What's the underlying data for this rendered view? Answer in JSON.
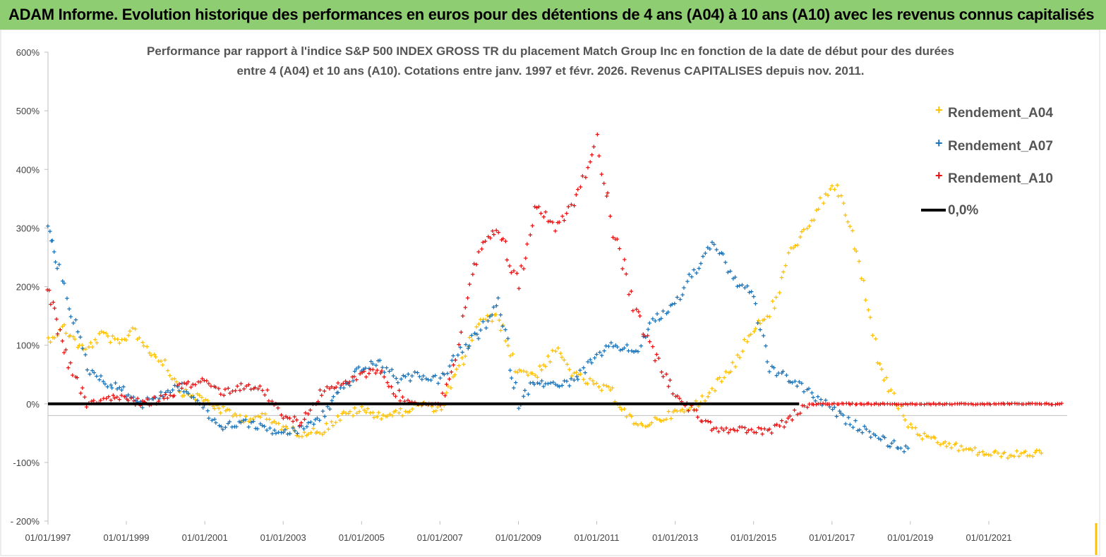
{
  "header": {
    "title": "ADAM Informe. Evolution historique des performances en euros pour des détentions de 4 ans (A04) à 10 ans (A10) avec les revenus connus capitalisés"
  },
  "chart_data": {
    "type": "scatter",
    "title_lines": [
      "Performance par rapport à l'indice S&P 500 INDEX GROSS TR  du placement Match Group Inc en fonction de la date de début pour des durées",
      "entre 4 (A04) et 10 ans (A10). Cotations entre janv. 1997 et févr. 2026. Revenus CAPITALISES depuis nov. 2011."
    ],
    "xlabel": "",
    "ylabel": "",
    "x_range": [
      "1997-01-01",
      "2023-01-01"
    ],
    "ylim": [
      -200,
      600
    ],
    "y_ticks": [
      -200,
      -100,
      0,
      100,
      200,
      300,
      400,
      500,
      600
    ],
    "y_tick_labels": [
      "- 200%",
      "-100%",
      "0%",
      "100%",
      "200%",
      "300%",
      "400%",
      "500%",
      "600%"
    ],
    "x_ticks": [
      "1997-01-01",
      "1999-01-01",
      "2001-01-01",
      "2003-01-01",
      "2005-01-01",
      "2007-01-01",
      "2009-01-01",
      "2011-01-01",
      "2013-01-01",
      "2015-01-01",
      "2017-01-01",
      "2019-01-01",
      "2021-01-01"
    ],
    "x_tick_labels": [
      "01/01/1997",
      "01/01/1999",
      "01/01/2001",
      "01/01/2003",
      "01/01/2005",
      "01/01/2007",
      "01/01/2009",
      "01/01/2011",
      "01/01/2013",
      "01/01/2015",
      "01/01/2017",
      "01/01/2019",
      "01/01/2021"
    ],
    "grid": false,
    "legend_position": "top-right",
    "series": [
      {
        "name": "Rendement_A04",
        "color": "#ffc000",
        "points": [
          [
            "1997-01-01",
            110
          ],
          [
            "1997-06-01",
            130
          ],
          [
            "1997-12-01",
            90
          ],
          [
            "1998-06-01",
            120
          ],
          [
            "1998-11-01",
            100
          ],
          [
            "1999-03-01",
            130
          ],
          [
            "1999-08-01",
            90
          ],
          [
            "2000-01-01",
            70
          ],
          [
            "2000-06-01",
            20
          ],
          [
            "2000-12-01",
            10
          ],
          [
            "2001-06-01",
            -10
          ],
          [
            "2002-01-01",
            -25
          ],
          [
            "2002-06-01",
            -20
          ],
          [
            "2003-01-01",
            -40
          ],
          [
            "2003-06-01",
            -50
          ],
          [
            "2004-01-01",
            -45
          ],
          [
            "2004-07-01",
            -20
          ],
          [
            "2005-01-01",
            -10
          ],
          [
            "2005-07-01",
            -20
          ],
          [
            "2006-01-01",
            -15
          ],
          [
            "2006-07-01",
            0
          ],
          [
            "2007-01-01",
            -10
          ],
          [
            "2007-07-01",
            60
          ],
          [
            "2008-01-01",
            140
          ],
          [
            "2008-07-01",
            150
          ],
          [
            "2008-12-01",
            60
          ],
          [
            "2009-06-01",
            50
          ],
          [
            "2010-01-01",
            90
          ],
          [
            "2010-06-01",
            50
          ],
          [
            "2011-01-01",
            30
          ],
          [
            "2011-06-01",
            20
          ],
          [
            "2012-01-01",
            -40
          ],
          [
            "2012-06-01",
            -30
          ],
          [
            "2013-01-01",
            -15
          ],
          [
            "2013-06-01",
            -10
          ],
          [
            "2014-01-01",
            30
          ],
          [
            "2014-06-01",
            60
          ],
          [
            "2015-01-01",
            130
          ],
          [
            "2015-06-01",
            150
          ],
          [
            "2016-01-01",
            270
          ],
          [
            "2016-06-01",
            300
          ],
          [
            "2017-01-01",
            380
          ],
          [
            "2017-06-01",
            320
          ],
          [
            "2017-10-01",
            220
          ],
          [
            "2018-03-01",
            80
          ],
          [
            "2018-08-01",
            10
          ],
          [
            "2019-01-01",
            -40
          ],
          [
            "2019-06-01",
            -60
          ],
          [
            "2020-01-01",
            -70
          ],
          [
            "2020-06-01",
            -78
          ],
          [
            "2021-01-01",
            -85
          ],
          [
            "2021-06-01",
            -87
          ],
          [
            "2022-01-01",
            -85
          ],
          [
            "2022-06-01",
            -83
          ]
        ]
      },
      {
        "name": "Rendement_A07",
        "color": "#1a73b8",
        "points": [
          [
            "1997-01-01",
            300
          ],
          [
            "1997-04-01",
            240
          ],
          [
            "1997-08-01",
            160
          ],
          [
            "1998-01-01",
            60
          ],
          [
            "1998-06-01",
            40
          ],
          [
            "1999-01-01",
            20
          ],
          [
            "1999-06-01",
            0
          ],
          [
            "2000-01-01",
            20
          ],
          [
            "2000-06-01",
            30
          ],
          [
            "2001-01-01",
            -10
          ],
          [
            "2001-06-01",
            -40
          ],
          [
            "2002-01-01",
            -30
          ],
          [
            "2002-06-01",
            -40
          ],
          [
            "2003-01-01",
            -50
          ],
          [
            "2003-06-01",
            -45
          ],
          [
            "2004-01-01",
            -20
          ],
          [
            "2004-06-01",
            20
          ],
          [
            "2005-01-01",
            60
          ],
          [
            "2005-06-01",
            70
          ],
          [
            "2006-01-01",
            40
          ],
          [
            "2006-06-01",
            50
          ],
          [
            "2007-01-01",
            40
          ],
          [
            "2007-06-01",
            80
          ],
          [
            "2008-01-01",
            120
          ],
          [
            "2008-07-01",
            170
          ],
          [
            "2009-01-01",
            0
          ],
          [
            "2009-06-01",
            40
          ],
          [
            "2010-01-01",
            30
          ],
          [
            "2010-06-01",
            40
          ],
          [
            "2011-01-01",
            80
          ],
          [
            "2011-06-01",
            100
          ],
          [
            "2012-01-01",
            90
          ],
          [
            "2012-06-01",
            140
          ],
          [
            "2013-01-01",
            170
          ],
          [
            "2013-06-01",
            220
          ],
          [
            "2014-01-01",
            280
          ],
          [
            "2014-06-01",
            220
          ],
          [
            "2015-01-01",
            180
          ],
          [
            "2015-06-01",
            60
          ],
          [
            "2016-01-01",
            40
          ],
          [
            "2016-06-01",
            20
          ],
          [
            "2017-01-01",
            -10
          ],
          [
            "2017-06-01",
            -30
          ],
          [
            "2018-01-01",
            -50
          ],
          [
            "2018-06-01",
            -65
          ],
          [
            "2019-01-01",
            -80
          ]
        ]
      },
      {
        "name": "Rendement_A10",
        "color": "#e81010",
        "points": [
          [
            "1997-01-01",
            200
          ],
          [
            "1997-04-01",
            130
          ],
          [
            "1997-08-01",
            60
          ],
          [
            "1998-01-01",
            0
          ],
          [
            "1998-06-01",
            10
          ],
          [
            "1999-01-01",
            10
          ],
          [
            "1999-06-01",
            0
          ],
          [
            "2000-01-01",
            10
          ],
          [
            "2000-06-01",
            30
          ],
          [
            "2001-01-01",
            40
          ],
          [
            "2001-06-01",
            20
          ],
          [
            "2002-01-01",
            30
          ],
          [
            "2002-06-01",
            30
          ],
          [
            "2003-01-01",
            -20
          ],
          [
            "2003-06-01",
            -30
          ],
          [
            "2004-01-01",
            20
          ],
          [
            "2004-06-01",
            30
          ],
          [
            "2005-01-01",
            50
          ],
          [
            "2005-06-01",
            60
          ],
          [
            "2006-01-01",
            10
          ],
          [
            "2006-06-01",
            0
          ],
          [
            "2007-01-01",
            0
          ],
          [
            "2007-06-01",
            80
          ],
          [
            "2008-01-01",
            260
          ],
          [
            "2008-07-01",
            300
          ],
          [
            "2009-01-01",
            200
          ],
          [
            "2009-06-01",
            340
          ],
          [
            "2010-01-01",
            300
          ],
          [
            "2010-06-01",
            350
          ],
          [
            "2011-01-01",
            450
          ],
          [
            "2011-06-01",
            300
          ],
          [
            "2012-01-01",
            160
          ],
          [
            "2012-06-01",
            90
          ],
          [
            "2013-01-01",
            20
          ],
          [
            "2013-06-01",
            -10
          ],
          [
            "2014-01-01",
            -40
          ],
          [
            "2014-06-01",
            -45
          ],
          [
            "2015-01-01",
            -45
          ],
          [
            "2015-06-01",
            -50
          ],
          [
            "2016-01-01",
            -20
          ],
          [
            "2016-06-01",
            0
          ],
          [
            "2017-06-01",
            0
          ],
          [
            "2018-06-01",
            0
          ],
          [
            "2019-06-01",
            0
          ],
          [
            "2020-06-01",
            0
          ],
          [
            "2021-06-01",
            0
          ],
          [
            "2022-06-01",
            0
          ],
          [
            "2022-12-01",
            0
          ]
        ]
      }
    ],
    "reference_line": {
      "name": "0,0%",
      "value": 0,
      "color": "#000000"
    }
  }
}
